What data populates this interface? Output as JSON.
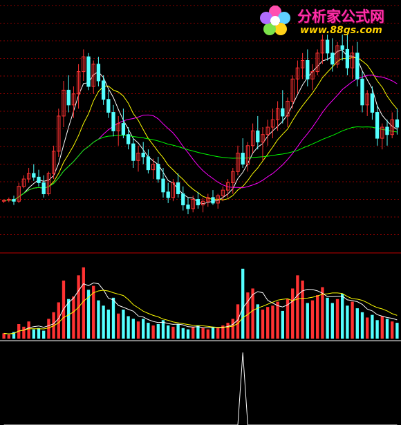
{
  "watermark": {
    "title": "分析家公式网",
    "url": "www.88gs.com"
  },
  "colors": {
    "up": "#ff3232",
    "down": "#54ffff",
    "ma5": "#ffffff",
    "ma10": "#ffff00",
    "ma20": "#ff00ff",
    "ma60": "#00ff00",
    "grid": "#8b0000",
    "divider": "#c00000",
    "indicator": "#ffffff",
    "logo_title": "#ff2ea8",
    "logo_url": "#ffd200"
  },
  "chart_data": [
    {
      "type": "candlestick",
      "panel": "price",
      "title": "",
      "xlabel": "",
      "ylabel": "",
      "ylim": [
        0,
        100
      ],
      "grid": true,
      "legend": "none",
      "ohlc": [
        [
          10,
          11,
          9,
          10.5
        ],
        [
          10.5,
          12,
          9.5,
          11
        ],
        [
          11,
          13,
          8,
          10
        ],
        [
          10,
          20,
          9,
          18
        ],
        [
          18,
          24,
          17,
          22
        ],
        [
          22,
          28,
          20,
          25
        ],
        [
          25,
          30,
          21,
          23
        ],
        [
          23,
          27,
          18,
          20
        ],
        [
          20,
          24,
          12,
          14
        ],
        [
          14,
          26,
          13,
          25
        ],
        [
          25,
          40,
          22,
          37
        ],
        [
          37,
          60,
          34,
          56
        ],
        [
          56,
          75,
          50,
          70
        ],
        [
          70,
          78,
          58,
          62
        ],
        [
          62,
          72,
          55,
          68
        ],
        [
          68,
          84,
          60,
          80
        ],
        [
          80,
          92,
          75,
          88
        ],
        [
          88,
          90,
          70,
          72
        ],
        [
          72,
          86,
          68,
          84
        ],
        [
          84,
          88,
          72,
          75
        ],
        [
          75,
          78,
          62,
          65
        ],
        [
          65,
          70,
          55,
          58
        ],
        [
          58,
          62,
          45,
          48
        ],
        [
          48,
          56,
          40,
          52
        ],
        [
          52,
          60,
          44,
          46
        ],
        [
          46,
          50,
          38,
          41
        ],
        [
          41,
          44,
          28,
          32
        ],
        [
          32,
          40,
          26,
          36
        ],
        [
          36,
          42,
          30,
          34
        ],
        [
          34,
          38,
          25,
          27
        ],
        [
          27,
          33,
          22,
          30
        ],
        [
          30,
          34,
          20,
          22
        ],
        [
          22,
          28,
          12,
          15
        ],
        [
          15,
          20,
          9,
          12
        ],
        [
          12,
          22,
          10,
          20
        ],
        [
          20,
          25,
          12,
          14
        ],
        [
          14,
          18,
          5,
          8
        ],
        [
          8,
          12,
          3,
          6
        ],
        [
          6,
          13,
          4,
          11
        ],
        [
          11,
          15,
          6,
          8
        ],
        [
          8,
          12,
          4,
          10
        ],
        [
          10,
          14,
          7,
          12
        ],
        [
          12,
          16,
          8,
          9
        ],
        [
          9,
          14,
          6,
          13
        ],
        [
          13,
          18,
          10,
          16
        ],
        [
          16,
          22,
          12,
          20
        ],
        [
          20,
          28,
          14,
          26
        ],
        [
          26,
          40,
          24,
          36
        ],
        [
          36,
          44,
          28,
          30
        ],
        [
          30,
          42,
          26,
          40
        ],
        [
          40,
          52,
          36,
          48
        ],
        [
          48,
          56,
          38,
          42
        ],
        [
          42,
          50,
          32,
          46
        ],
        [
          46,
          54,
          40,
          50
        ],
        [
          50,
          60,
          44,
          54
        ],
        [
          54,
          64,
          48,
          60
        ],
        [
          60,
          70,
          52,
          56
        ],
        [
          56,
          66,
          50,
          64
        ],
        [
          64,
          78,
          60,
          76
        ],
        [
          76,
          86,
          68,
          82
        ],
        [
          82,
          90,
          76,
          86
        ],
        [
          86,
          92,
          72,
          76
        ],
        [
          76,
          84,
          70,
          80
        ],
        [
          80,
          92,
          78,
          90
        ],
        [
          90,
          100,
          84,
          97
        ],
        [
          97,
          100,
          86,
          90
        ],
        [
          90,
          98,
          80,
          84
        ],
        [
          84,
          96,
          82,
          94
        ],
        [
          94,
          100,
          86,
          92
        ],
        [
          92,
          100,
          78,
          82
        ],
        [
          82,
          94,
          76,
          90
        ],
        [
          90,
          96,
          72,
          76
        ],
        [
          76,
          80,
          58,
          62
        ],
        [
          62,
          70,
          56,
          68
        ],
        [
          68,
          72,
          54,
          58
        ],
        [
          58,
          62,
          40,
          44
        ],
        [
          44,
          52,
          38,
          50
        ],
        [
          50,
          54,
          40,
          46
        ],
        [
          46,
          58,
          44,
          54
        ],
        [
          54,
          60,
          46,
          50
        ]
      ],
      "ma_lines": [
        "MA5",
        "MA10",
        "MA20",
        "MA60"
      ]
    },
    {
      "type": "bar",
      "panel": "volume",
      "title": "",
      "xlabel": "",
      "ylabel": "",
      "ylim": [
        0,
        110
      ],
      "values": [
        8,
        6,
        10,
        22,
        18,
        26,
        14,
        16,
        12,
        30,
        40,
        55,
        88,
        60,
        64,
        96,
        108,
        74,
        80,
        58,
        50,
        44,
        62,
        38,
        44,
        34,
        30,
        26,
        30,
        24,
        20,
        22,
        28,
        20,
        18,
        22,
        16,
        14,
        18,
        20,
        16,
        14,
        18,
        16,
        20,
        24,
        30,
        52,
        106,
        70,
        76,
        52,
        44,
        48,
        50,
        56,
        42,
        60,
        76,
        96,
        88,
        54,
        58,
        66,
        78,
        62,
        54,
        60,
        68,
        50,
        56,
        46,
        40,
        32,
        36,
        28,
        34,
        30,
        26,
        24
      ],
      "ma_lines": [
        "MA5",
        "MA10"
      ]
    },
    {
      "type": "line",
      "panel": "indicator",
      "title": "",
      "xlabel": "",
      "ylabel": "",
      "ylim": [
        0,
        100
      ],
      "values": [
        0,
        0,
        0,
        0,
        0,
        0,
        0,
        0,
        0,
        0,
        0,
        0,
        0,
        0,
        0,
        0,
        0,
        0,
        0,
        0,
        0,
        0,
        0,
        0,
        0,
        0,
        0,
        0,
        0,
        0,
        0,
        0,
        0,
        0,
        0,
        0,
        0,
        0,
        0,
        0,
        0,
        0,
        0,
        0,
        0,
        0,
        0,
        0,
        100,
        0,
        0,
        0,
        0,
        0,
        0,
        0,
        0,
        0,
        0,
        0,
        0,
        0,
        0,
        0,
        0,
        0,
        0,
        0,
        0,
        0,
        0,
        0,
        0,
        0,
        0,
        0,
        0,
        0,
        0,
        0
      ]
    }
  ]
}
